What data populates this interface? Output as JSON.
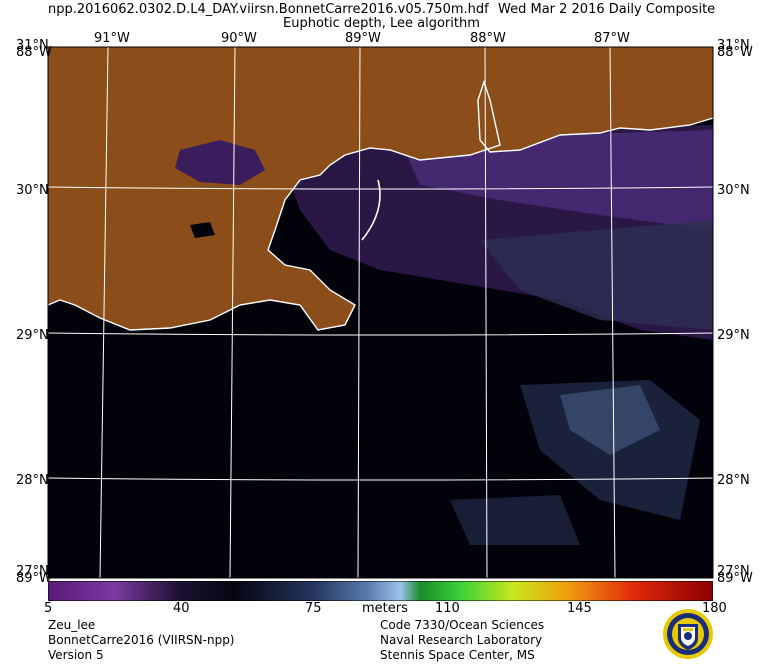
{
  "header": {
    "filename": "npp.2016062.0302.D.L4_DAY.viirsn.BonnetCarre2016.v05.750m.hdf",
    "date": "Wed Mar  2 2016 Daily Composite",
    "product": "Euphotic depth, Lee algorithm"
  },
  "map": {
    "lon_labels": [
      "91°W",
      "90°W",
      "89°W",
      "88°W",
      "87°W"
    ],
    "lat_labels": [
      "30°N",
      "29°N",
      "28°N"
    ],
    "corner_top": "31°N",
    "corner_top_overlay": "88°W",
    "corner_bottom": "27°N",
    "corner_bottom_overlay": "89°W",
    "colors": {
      "land": "#8b4d1a",
      "water_low": "#02020a",
      "coast": "#ffffff",
      "grid": "#ffffff"
    }
  },
  "colorbar": {
    "min": "5",
    "t40": "40",
    "t75": "75",
    "units": "meters",
    "t110": "110",
    "t145": "145",
    "max": "180"
  },
  "footer": {
    "left": [
      "Zeu_lee",
      "BonnetCarre2016 (VIIRSN-npp)",
      "Version 5"
    ],
    "right": [
      "Code 7330/Ocean Sciences",
      "Naval Research Laboratory",
      "Stennis Space Center, MS"
    ]
  },
  "logo": "nrl-seal-icon"
}
